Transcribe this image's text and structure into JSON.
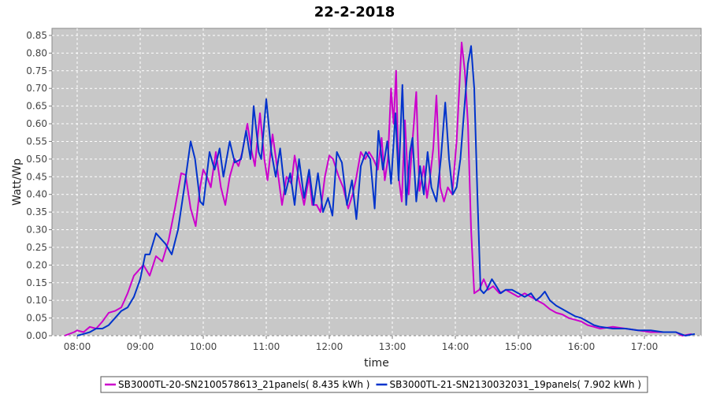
{
  "chart_data": {
    "type": "line",
    "title": "22-2-2018",
    "xlabel": "time",
    "ylabel": "Watt/Wp",
    "xlim_hours": [
      7.6,
      17.9
    ],
    "ylim": [
      0,
      0.87
    ],
    "x_ticks": [
      {
        "label": "08:00",
        "value": 8
      },
      {
        "label": "09:00",
        "value": 9
      },
      {
        "label": "10:00",
        "value": 10
      },
      {
        "label": "11:00",
        "value": 11
      },
      {
        "label": "12:00",
        "value": 12
      },
      {
        "label": "13:00",
        "value": 13
      },
      {
        "label": "14:00",
        "value": 14
      },
      {
        "label": "15:00",
        "value": 15
      },
      {
        "label": "16:00",
        "value": 16
      },
      {
        "label": "17:00",
        "value": 17
      }
    ],
    "y_ticks": [
      "0.00",
      "0.05",
      "0.10",
      "0.15",
      "0.20",
      "0.25",
      "0.30",
      "0.35",
      "0.40",
      "0.45",
      "0.50",
      "0.55",
      "0.60",
      "0.65",
      "0.70",
      "0.75",
      "0.80",
      "0.85"
    ],
    "grid": true,
    "legend_position": "bottom",
    "series": [
      {
        "name": "SB3000TL-20-SN2100578613_21panels( 8.435 kWh )",
        "color": "#cc00cc",
        "points": [
          [
            7.8,
            0.0
          ],
          [
            7.95,
            0.01
          ],
          [
            8.0,
            0.015
          ],
          [
            8.1,
            0.01
          ],
          [
            8.2,
            0.025
          ],
          [
            8.3,
            0.02
          ],
          [
            8.4,
            0.04
          ],
          [
            8.5,
            0.065
          ],
          [
            8.6,
            0.07
          ],
          [
            8.7,
            0.08
          ],
          [
            8.8,
            0.12
          ],
          [
            8.9,
            0.17
          ],
          [
            9.0,
            0.19
          ],
          [
            9.05,
            0.2
          ],
          [
            9.15,
            0.17
          ],
          [
            9.25,
            0.225
          ],
          [
            9.35,
            0.21
          ],
          [
            9.45,
            0.27
          ],
          [
            9.55,
            0.36
          ],
          [
            9.65,
            0.46
          ],
          [
            9.72,
            0.455
          ],
          [
            9.8,
            0.36
          ],
          [
            9.88,
            0.31
          ],
          [
            9.95,
            0.42
          ],
          [
            10.0,
            0.47
          ],
          [
            10.06,
            0.45
          ],
          [
            10.12,
            0.42
          ],
          [
            10.2,
            0.52
          ],
          [
            10.28,
            0.42
          ],
          [
            10.35,
            0.37
          ],
          [
            10.42,
            0.45
          ],
          [
            10.5,
            0.5
          ],
          [
            10.56,
            0.48
          ],
          [
            10.62,
            0.52
          ],
          [
            10.7,
            0.6
          ],
          [
            10.77,
            0.52
          ],
          [
            10.82,
            0.48
          ],
          [
            10.9,
            0.63
          ],
          [
            10.97,
            0.5
          ],
          [
            11.02,
            0.44
          ],
          [
            11.1,
            0.57
          ],
          [
            11.17,
            0.48
          ],
          [
            11.25,
            0.37
          ],
          [
            11.32,
            0.45
          ],
          [
            11.4,
            0.43
          ],
          [
            11.45,
            0.51
          ],
          [
            11.52,
            0.44
          ],
          [
            11.6,
            0.37
          ],
          [
            11.68,
            0.45
          ],
          [
            11.73,
            0.37
          ],
          [
            11.8,
            0.37
          ],
          [
            11.86,
            0.35
          ],
          [
            11.93,
            0.45
          ],
          [
            12.0,
            0.51
          ],
          [
            12.06,
            0.5
          ],
          [
            12.15,
            0.45
          ],
          [
            12.22,
            0.42
          ],
          [
            12.3,
            0.36
          ],
          [
            12.37,
            0.4
          ],
          [
            12.42,
            0.44
          ],
          [
            12.5,
            0.52
          ],
          [
            12.57,
            0.5
          ],
          [
            12.63,
            0.52
          ],
          [
            12.7,
            0.5
          ],
          [
            12.77,
            0.47
          ],
          [
            12.83,
            0.56
          ],
          [
            12.88,
            0.44
          ],
          [
            12.93,
            0.5
          ],
          [
            12.98,
            0.7
          ],
          [
            13.02,
            0.6
          ],
          [
            13.06,
            0.75
          ],
          [
            13.1,
            0.45
          ],
          [
            13.15,
            0.38
          ],
          [
            13.2,
            0.61
          ],
          [
            13.26,
            0.4
          ],
          [
            13.32,
            0.55
          ],
          [
            13.38,
            0.69
          ],
          [
            13.43,
            0.41
          ],
          [
            13.5,
            0.48
          ],
          [
            13.55,
            0.39
          ],
          [
            13.6,
            0.45
          ],
          [
            13.65,
            0.53
          ],
          [
            13.7,
            0.68
          ],
          [
            13.76,
            0.42
          ],
          [
            13.82,
            0.38
          ],
          [
            13.88,
            0.42
          ],
          [
            13.95,
            0.4
          ],
          [
            14.02,
            0.55
          ],
          [
            14.1,
            0.83
          ],
          [
            14.15,
            0.75
          ],
          [
            14.2,
            0.6
          ],
          [
            14.25,
            0.3
          ],
          [
            14.3,
            0.12
          ],
          [
            14.38,
            0.13
          ],
          [
            14.45,
            0.16
          ],
          [
            14.52,
            0.13
          ],
          [
            14.6,
            0.14
          ],
          [
            14.7,
            0.12
          ],
          [
            14.8,
            0.13
          ],
          [
            14.9,
            0.12
          ],
          [
            15.0,
            0.11
          ],
          [
            15.1,
            0.12
          ],
          [
            15.2,
            0.11
          ],
          [
            15.3,
            0.1
          ],
          [
            15.4,
            0.09
          ],
          [
            15.5,
            0.075
          ],
          [
            15.6,
            0.065
          ],
          [
            15.7,
            0.06
          ],
          [
            15.8,
            0.05
          ],
          [
            15.9,
            0.045
          ],
          [
            16.0,
            0.04
          ],
          [
            16.1,
            0.03
          ],
          [
            16.2,
            0.025
          ],
          [
            16.3,
            0.02
          ],
          [
            16.5,
            0.025
          ],
          [
            16.7,
            0.02
          ],
          [
            16.9,
            0.015
          ],
          [
            17.1,
            0.01
          ],
          [
            17.3,
            0.01
          ],
          [
            17.5,
            0.01
          ],
          [
            17.6,
            0.0
          ],
          [
            17.75,
            0.005
          ]
        ]
      },
      {
        "name": "SB3000TL-21-SN2130032031_19panels( 7.902 kWh )",
        "color": "#0033cc",
        "points": [
          [
            8.0,
            0.0
          ],
          [
            8.1,
            0.005
          ],
          [
            8.2,
            0.01
          ],
          [
            8.3,
            0.02
          ],
          [
            8.4,
            0.02
          ],
          [
            8.5,
            0.03
          ],
          [
            8.6,
            0.05
          ],
          [
            8.7,
            0.07
          ],
          [
            8.8,
            0.08
          ],
          [
            8.9,
            0.11
          ],
          [
            9.0,
            0.16
          ],
          [
            9.08,
            0.23
          ],
          [
            9.15,
            0.23
          ],
          [
            9.25,
            0.29
          ],
          [
            9.3,
            0.28
          ],
          [
            9.4,
            0.26
          ],
          [
            9.5,
            0.23
          ],
          [
            9.6,
            0.3
          ],
          [
            9.7,
            0.42
          ],
          [
            9.8,
            0.55
          ],
          [
            9.87,
            0.5
          ],
          [
            9.95,
            0.38
          ],
          [
            10.0,
            0.37
          ],
          [
            10.1,
            0.52
          ],
          [
            10.18,
            0.47
          ],
          [
            10.26,
            0.53
          ],
          [
            10.32,
            0.45
          ],
          [
            10.42,
            0.55
          ],
          [
            10.5,
            0.49
          ],
          [
            10.6,
            0.5
          ],
          [
            10.68,
            0.58
          ],
          [
            10.75,
            0.5
          ],
          [
            10.8,
            0.65
          ],
          [
            10.88,
            0.52
          ],
          [
            10.92,
            0.5
          ],
          [
            11.0,
            0.67
          ],
          [
            11.08,
            0.52
          ],
          [
            11.15,
            0.45
          ],
          [
            11.22,
            0.53
          ],
          [
            11.3,
            0.4
          ],
          [
            11.38,
            0.46
          ],
          [
            11.45,
            0.37
          ],
          [
            11.52,
            0.5
          ],
          [
            11.6,
            0.39
          ],
          [
            11.68,
            0.47
          ],
          [
            11.75,
            0.37
          ],
          [
            11.82,
            0.46
          ],
          [
            11.9,
            0.35
          ],
          [
            11.98,
            0.39
          ],
          [
            12.05,
            0.34
          ],
          [
            12.12,
            0.52
          ],
          [
            12.2,
            0.49
          ],
          [
            12.28,
            0.37
          ],
          [
            12.36,
            0.44
          ],
          [
            12.43,
            0.33
          ],
          [
            12.5,
            0.48
          ],
          [
            12.58,
            0.52
          ],
          [
            12.65,
            0.5
          ],
          [
            12.72,
            0.36
          ],
          [
            12.78,
            0.58
          ],
          [
            12.85,
            0.47
          ],
          [
            12.92,
            0.55
          ],
          [
            12.98,
            0.43
          ],
          [
            13.05,
            0.63
          ],
          [
            13.1,
            0.44
          ],
          [
            13.16,
            0.71
          ],
          [
            13.22,
            0.37
          ],
          [
            13.28,
            0.52
          ],
          [
            13.32,
            0.56
          ],
          [
            13.38,
            0.38
          ],
          [
            13.44,
            0.48
          ],
          [
            13.5,
            0.4
          ],
          [
            13.56,
            0.52
          ],
          [
            13.62,
            0.42
          ],
          [
            13.7,
            0.38
          ],
          [
            13.77,
            0.5
          ],
          [
            13.84,
            0.66
          ],
          [
            13.9,
            0.5
          ],
          [
            13.96,
            0.4
          ],
          [
            14.02,
            0.42
          ],
          [
            14.08,
            0.5
          ],
          [
            14.15,
            0.66
          ],
          [
            14.2,
            0.77
          ],
          [
            14.25,
            0.82
          ],
          [
            14.3,
            0.7
          ],
          [
            14.35,
            0.4
          ],
          [
            14.4,
            0.13
          ],
          [
            14.45,
            0.12
          ],
          [
            14.5,
            0.13
          ],
          [
            14.58,
            0.16
          ],
          [
            14.65,
            0.14
          ],
          [
            14.72,
            0.12
          ],
          [
            14.8,
            0.13
          ],
          [
            14.9,
            0.13
          ],
          [
            15.0,
            0.12
          ],
          [
            15.1,
            0.11
          ],
          [
            15.2,
            0.12
          ],
          [
            15.28,
            0.1
          ],
          [
            15.35,
            0.11
          ],
          [
            15.42,
            0.125
          ],
          [
            15.5,
            0.1
          ],
          [
            15.6,
            0.085
          ],
          [
            15.7,
            0.075
          ],
          [
            15.8,
            0.065
          ],
          [
            15.9,
            0.055
          ],
          [
            16.0,
            0.05
          ],
          [
            16.1,
            0.04
          ],
          [
            16.2,
            0.03
          ],
          [
            16.3,
            0.025
          ],
          [
            16.5,
            0.02
          ],
          [
            16.7,
            0.02
          ],
          [
            16.9,
            0.015
          ],
          [
            17.1,
            0.015
          ],
          [
            17.3,
            0.01
          ],
          [
            17.5,
            0.01
          ],
          [
            17.65,
            0.0
          ],
          [
            17.8,
            0.005
          ]
        ]
      }
    ]
  }
}
